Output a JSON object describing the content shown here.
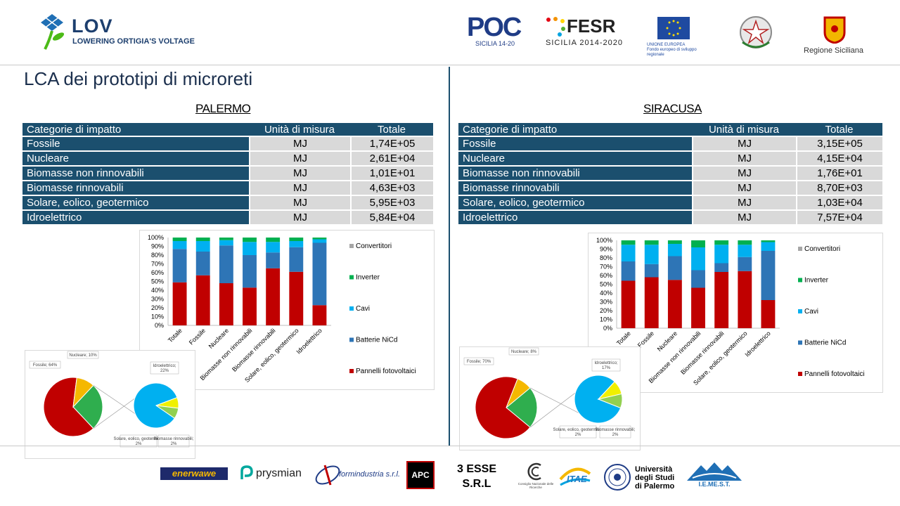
{
  "header": {
    "project_title": "LOV",
    "project_subtitle": "LOWERING ORTIGIA'S VOLTAGE",
    "poc_logo": "POC",
    "poc_sub": "SICILIA 14-20",
    "fesr_logo": "FESR",
    "fesr_sub": "SICILIA 2014-2020",
    "eu_caption": "UNIONE EUROPEA\nFondo europeo di sviluppo regionale",
    "regione_label": "Regione Siciliana"
  },
  "page_title": "LCA dei prototipi di microreti",
  "table_headers": {
    "category": "Categorie di impatto",
    "unit": "Unità di misura",
    "total": "Totale"
  },
  "palermo": {
    "title": "PALERMO",
    "rows": [
      {
        "category": "Fossile",
        "unit": "MJ",
        "total": "1,74E+05"
      },
      {
        "category": "Nucleare",
        "unit": "MJ",
        "total": "2,61E+04"
      },
      {
        "category": "Biomasse non rinnovabili",
        "unit": "MJ",
        "total": "1,01E+01"
      },
      {
        "category": "Biomasse rinnovabili",
        "unit": "MJ",
        "total": "4,63E+03"
      },
      {
        "category": "Solare, eolico, geotermico",
        "unit": "MJ",
        "total": "5,95E+03"
      },
      {
        "category": "Idroelettrico",
        "unit": "MJ",
        "total": "5,84E+04"
      }
    ]
  },
  "siracusa": {
    "title": "SIRACUSA",
    "rows": [
      {
        "category": "Fossile",
        "unit": "MJ",
        "total": "3,15E+05"
      },
      {
        "category": "Nucleare",
        "unit": "MJ",
        "total": "4,15E+04"
      },
      {
        "category": "Biomasse non rinnovabili",
        "unit": "MJ",
        "total": "1,76E+01"
      },
      {
        "category": "Biomasse rinnovabili",
        "unit": "MJ",
        "total": "8,70E+03"
      },
      {
        "category": "Solare, eolico, geotermico",
        "unit": "MJ",
        "total": "1,03E+04"
      },
      {
        "category": "Idroelettrico",
        "unit": "MJ",
        "total": "7,57E+04"
      }
    ]
  },
  "chart_data": [
    {
      "id": "palermo-bar",
      "type": "bar",
      "stacked": true,
      "categories": [
        "Totale",
        "Fossile",
        "Nucleare",
        "Biomasse non rinnovabili",
        "Biomasse rinnovabili",
        "Solare, eolico, geotermico",
        "Idroelettrico"
      ],
      "y_ticks": [
        "0%",
        "10%",
        "20%",
        "30%",
        "40%",
        "50%",
        "60%",
        "70%",
        "80%",
        "90%",
        "100%"
      ],
      "ylim": [
        0,
        100
      ],
      "legend_position": "right",
      "series": [
        {
          "name": "Pannelli fotovoltaici",
          "color": "#c00000",
          "values": [
            49,
            57,
            48,
            43,
            65,
            61,
            23
          ]
        },
        {
          "name": "Batterie NiCd",
          "color": "#2e75b6",
          "values": [
            38,
            27,
            43,
            37,
            18,
            28,
            71
          ]
        },
        {
          "name": "Cavi",
          "color": "#00b0f0",
          "values": [
            9,
            12,
            6,
            15,
            12,
            7,
            4
          ]
        },
        {
          "name": "Inverter",
          "color": "#00b050",
          "values": [
            4,
            4,
            3,
            5,
            5,
            4,
            2
          ]
        },
        {
          "name": "Convertitori",
          "color": "#a6a6a6",
          "values": [
            0,
            0,
            0,
            0,
            0,
            0,
            0
          ]
        }
      ]
    },
    {
      "id": "siracusa-bar",
      "type": "bar",
      "stacked": true,
      "categories": [
        "Totale",
        "Fossile",
        "Nucleare",
        "Biomasse non rinnovabili",
        "Biomasse rinnovabili",
        "Solare, eolico, geotermico",
        "Idroelettrico"
      ],
      "y_ticks": [
        "0%",
        "10%",
        "20%",
        "30%",
        "40%",
        "50%",
        "60%",
        "70%",
        "80%",
        "90%",
        "100%"
      ],
      "ylim": [
        0,
        100
      ],
      "legend_position": "right",
      "series": [
        {
          "name": "Pannelli fotovoltaici",
          "color": "#c00000",
          "values": [
            54,
            58,
            55,
            46,
            64,
            65,
            32
          ]
        },
        {
          "name": "Batterie NiCd",
          "color": "#2e75b6",
          "values": [
            22,
            15,
            27,
            20,
            10,
            16,
            56
          ]
        },
        {
          "name": "Cavi",
          "color": "#00b0f0",
          "values": [
            19,
            22,
            14,
            26,
            21,
            14,
            10
          ]
        },
        {
          "name": "Inverter",
          "color": "#00b050",
          "values": [
            5,
            5,
            4,
            8,
            5,
            5,
            2
          ]
        },
        {
          "name": "Convertitori",
          "color": "#a6a6a6",
          "values": [
            0,
            0,
            0,
            0,
            0,
            0,
            0
          ]
        }
      ]
    },
    {
      "id": "palermo-pie",
      "type": "pie",
      "main": [
        {
          "label": "Fossile; 64%",
          "value": 64,
          "color": "#c00000"
        },
        {
          "label": "Nucleare; 10%",
          "value": 10,
          "color": "#f5b800"
        },
        {
          "label": "",
          "value": 26,
          "color": "#2fae4e"
        }
      ],
      "sub": [
        {
          "label": "Idroelettrico; 22%",
          "value": 22,
          "color": "#00b0f0"
        },
        {
          "label": "Solare, eolico, geotermico; 2%",
          "value": 2,
          "color": "#f0f000"
        },
        {
          "label": "Biomasse rinnovabili; 2%",
          "value": 2,
          "color": "#92d050"
        }
      ]
    },
    {
      "id": "siracusa-pie",
      "type": "pie",
      "main": [
        {
          "label": "Fossile; 70%",
          "value": 70,
          "color": "#c00000"
        },
        {
          "label": "Nucleare; 8%",
          "value": 8,
          "color": "#f5b800"
        },
        {
          "label": "",
          "value": 22,
          "color": "#2fae4e"
        }
      ],
      "sub": [
        {
          "label": "Idroelettrico; 17%",
          "value": 17,
          "color": "#00b0f0"
        },
        {
          "label": "Solare, eolico, geotermico; 2%",
          "value": 2,
          "color": "#f0f000"
        },
        {
          "label": "Biomasse rinnovabili; 2%",
          "value": 2,
          "color": "#92d050"
        }
      ]
    }
  ],
  "footer_logos": {
    "enerwawe": "enerwawe",
    "prysmian": "prysmian",
    "formindustria": "formindustria s.r.l.",
    "apc": "APC",
    "tre_esse": "3 ESSE\nS.R.L",
    "cnr": "Consiglio Nazionale delle Ricerche",
    "ita": "ITAE",
    "unipa": "Università\ndegli Studi\ndi Palermo",
    "iemest": "I.E.ME.S.T."
  }
}
